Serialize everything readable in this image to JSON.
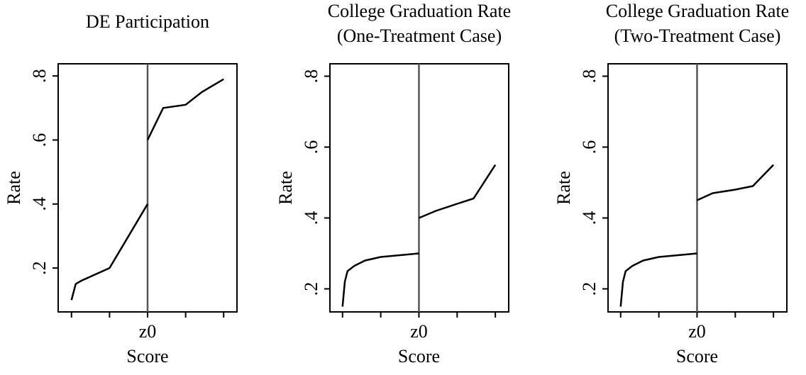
{
  "chart_data": [
    {
      "type": "line",
      "title": [
        "DE Participation"
      ],
      "xlabel": "Score",
      "ylabel": "Rate",
      "xlim": [
        -2.35,
        2.35
      ],
      "xticks": [
        {
          "value": 0,
          "label": "z0"
        }
      ],
      "x_minor_ticks": [
        -2,
        -1,
        1,
        2
      ],
      "ylim": [
        0.063,
        0.838
      ],
      "yticks": [
        {
          "value": 0.2,
          "label": ".2"
        },
        {
          "value": 0.4,
          "label": ".4"
        },
        {
          "value": 0.6,
          "label": ".6"
        },
        {
          "value": 0.8,
          "label": ".8"
        }
      ],
      "cutoff_line_color": "#555555",
      "x": [
        -2,
        -1.89,
        -1.75,
        -1,
        0,
        0,
        0,
        0.41,
        1,
        1.43,
        2
      ],
      "series": [
        {
          "color": "#000000",
          "values": [
            0.1,
            0.15,
            0.16,
            0.2,
            0.4,
            null,
            0.6,
            0.7,
            0.71,
            0.75,
            0.79
          ]
        }
      ]
    },
    {
      "type": "line",
      "title": [
        "College Graduation Rate",
        "(One-Treatment Case)"
      ],
      "xlabel": "Score",
      "ylabel": "Rate",
      "xlim": [
        -2.33,
        2.35
      ],
      "xticks": [
        {
          "value": 0,
          "label": "z0"
        }
      ],
      "x_minor_ticks": [
        -2,
        -1,
        1,
        2
      ],
      "ylim": [
        0.135,
        0.835
      ],
      "yticks": [
        {
          "value": 0.2,
          "label": ".2"
        },
        {
          "value": 0.4,
          "label": ".4"
        },
        {
          "value": 0.6,
          "label": ".6"
        },
        {
          "value": 0.8,
          "label": ".8"
        }
      ],
      "cutoff_line_color": "#555555",
      "x": [
        -2,
        -1.94,
        -1.87,
        -1.69,
        -1.41,
        -1,
        0,
        0,
        0,
        0.44,
        1,
        1.43,
        1.7,
        2
      ],
      "series": [
        {
          "color": "#000000",
          "values": [
            0.15,
            0.22,
            0.25,
            0.265,
            0.28,
            0.29,
            0.3,
            null,
            0.4,
            0.42,
            0.44,
            0.455,
            0.5,
            0.55
          ]
        }
      ]
    },
    {
      "type": "line",
      "title": [
        "College Graduation Rate",
        "(Two-Treatment Case)"
      ],
      "xlabel": "Score",
      "ylabel": "Rate",
      "xlim": [
        -2.33,
        2.35
      ],
      "xticks": [
        {
          "value": 0,
          "label": "z0"
        }
      ],
      "x_minor_ticks": [
        -2,
        -1,
        1,
        2
      ],
      "ylim": [
        0.135,
        0.835
      ],
      "yticks": [
        {
          "value": 0.2,
          "label": ".2"
        },
        {
          "value": 0.4,
          "label": ".4"
        },
        {
          "value": 0.6,
          "label": ".6"
        },
        {
          "value": 0.8,
          "label": ".8"
        }
      ],
      "cutoff_line_color": "#555555",
      "x": [
        -2,
        -1.94,
        -1.87,
        -1.69,
        -1.41,
        -1,
        0,
        0,
        0,
        0.41,
        1,
        1.46,
        2
      ],
      "series": [
        {
          "color": "#000000",
          "values": [
            0.15,
            0.22,
            0.25,
            0.265,
            0.28,
            0.29,
            0.3,
            null,
            0.45,
            0.47,
            0.48,
            0.49,
            0.55
          ]
        }
      ]
    }
  ]
}
